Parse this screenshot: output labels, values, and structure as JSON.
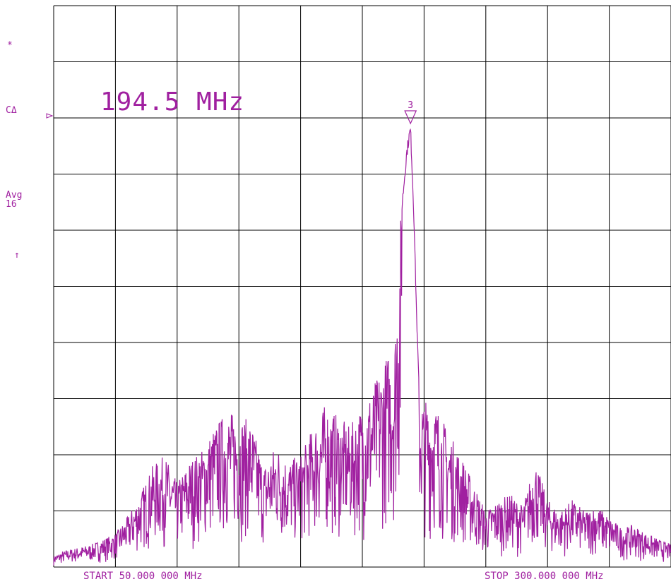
{
  "analyzer": {
    "side_labels": {
      "asterisk": "*",
      "channel": "CΔ",
      "avg_label": "Avg",
      "avg_count": "16",
      "arrow": "↑"
    },
    "marker_readout": "194.5 MHz",
    "marker_number": "3",
    "start": "START 50.000 000 MHz",
    "stop": "STOP 300.000 000 MHz",
    "trace_color": "#a020a0"
  },
  "chart_data": {
    "type": "line",
    "title": "",
    "xlabel": "",
    "ylabel": "",
    "x_unit": "MHz",
    "xlim": [
      50.0,
      300.0
    ],
    "ylim": [
      0,
      10
    ],
    "grid": true,
    "grid_divisions": [
      10,
      10
    ],
    "marker": {
      "label": "3",
      "x": 194.5,
      "y": 7.9
    },
    "series": [
      {
        "x": [
          50,
          55,
          60,
          65,
          70,
          75,
          80,
          85,
          90,
          95,
          100,
          105,
          110,
          115,
          120,
          125,
          130,
          135,
          140,
          145,
          150,
          155,
          160,
          165,
          170,
          175,
          180,
          185,
          188,
          190,
          192,
          193,
          194,
          194.5,
          195,
          196,
          197,
          198,
          200,
          205,
          210,
          215,
          220,
          225,
          230,
          235,
          240,
          245,
          250,
          255,
          260,
          265,
          270,
          275,
          280,
          285,
          290,
          295,
          300
        ],
        "y": [
          0.2,
          0.3,
          0.35,
          0.4,
          0.5,
          0.6,
          0.9,
          1.3,
          1.8,
          2.0,
          1.5,
          1.9,
          2.1,
          2.5,
          2.8,
          2.7,
          2.6,
          1.8,
          2.2,
          1.9,
          2.0,
          2.5,
          2.9,
          2.7,
          2.5,
          2.9,
          3.3,
          3.8,
          4.0,
          6.0,
          7.0,
          7.5,
          7.8,
          7.9,
          7.4,
          6.2,
          4.5,
          3.2,
          3.0,
          2.9,
          2.4,
          2.0,
          1.5,
          1.0,
          1.2,
          1.3,
          1.1,
          1.9,
          1.2,
          1.0,
          1.2,
          1.0,
          1.1,
          0.9,
          0.7,
          0.75,
          0.6,
          0.5,
          0.4
        ]
      }
    ]
  }
}
